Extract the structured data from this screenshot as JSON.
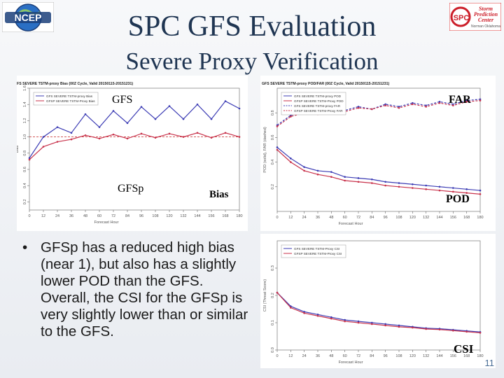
{
  "slide": {
    "title": "SPC GFS Evaluation",
    "subtitle": "Severe Proxy Verification",
    "bullet": "GFSp has a reduced high bias (near 1), but also has a slightly lower POD than the GFS.  Overall, the CSI for the GFSp is very slightly lower than or similar to the GFS.",
    "slide_number": "11"
  },
  "logos": {
    "ncep": {
      "text": "NCEP"
    },
    "spc": {
      "letters": "SPC",
      "lines": [
        "Storm",
        "Prediction",
        "Center"
      ],
      "subline": "Norman Oklahoma"
    }
  },
  "overlay_labels": {
    "gfs": "GFS",
    "gfsp": "GFSp",
    "bias": "Bias",
    "far": "FAR",
    "pod": "POD",
    "csi": "CSI"
  },
  "colors": {
    "gfs": "#3c3cb4",
    "gfsp": "#c8324b",
    "title": "#1f3552"
  },
  "chart_data": [
    {
      "type": "line",
      "title": "GFS SEVERE TSTM-proxy Bias (00Z Cycle, Valid 20150115-20151231)",
      "xlabel": "Forecast Hour",
      "ylabel": "Bias",
      "x": [
        0,
        12,
        24,
        36,
        48,
        60,
        72,
        84,
        96,
        108,
        120,
        132,
        144,
        156,
        168,
        180
      ],
      "xlim": [
        0,
        180
      ],
      "ylim": [
        0.1,
        1.6
      ],
      "yticks": [
        0.2,
        0.4,
        0.6,
        0.8,
        1.0,
        1.2,
        1.4,
        1.6
      ],
      "reference_line": 1.0,
      "legend": "top-left",
      "series": [
        {
          "name": "GFS SEVERE TSTM-proxy Bias",
          "color": "#3c3cb4",
          "values": [
            0.74,
            1.0,
            1.12,
            1.05,
            1.28,
            1.12,
            1.32,
            1.17,
            1.37,
            1.22,
            1.38,
            1.22,
            1.4,
            1.22,
            1.44,
            1.35
          ]
        },
        {
          "name": "GFSP SEVERE TSTM-Proxy Bias",
          "color": "#c8324b",
          "values": [
            0.72,
            0.88,
            0.94,
            0.97,
            1.02,
            0.98,
            1.03,
            0.98,
            1.04,
            0.99,
            1.04,
            1.0,
            1.05,
            0.99,
            1.05,
            1.0
          ]
        }
      ]
    },
    {
      "type": "line",
      "title": "GFS SEVERE TSTM-proxy POD/FAR (00Z Cycle, Valid 20150115-20151231)",
      "xlabel": "Forecast Hour",
      "ylabel": "POD (solid), FAR (dashed)",
      "x": [
        0,
        12,
        24,
        36,
        48,
        60,
        72,
        84,
        96,
        108,
        120,
        132,
        144,
        156,
        168,
        180
      ],
      "xlim": [
        0,
        180
      ],
      "ylim": [
        0.0,
        1.0
      ],
      "yticks": [
        0.2,
        0.4,
        0.6,
        0.8
      ],
      "legend": "top-left",
      "series": [
        {
          "name": "GFS SEVERE TSTM-proxy POD",
          "color": "#3c3cb4",
          "style": "solid",
          "values": [
            0.52,
            0.43,
            0.36,
            0.33,
            0.32,
            0.28,
            0.27,
            0.26,
            0.24,
            0.23,
            0.22,
            0.21,
            0.2,
            0.19,
            0.18,
            0.17
          ]
        },
        {
          "name": "GFSP SEVERE TSTM-Proxy POD",
          "color": "#c8324b",
          "style": "solid",
          "values": [
            0.5,
            0.4,
            0.33,
            0.3,
            0.28,
            0.25,
            0.24,
            0.23,
            0.21,
            0.2,
            0.19,
            0.18,
            0.17,
            0.16,
            0.15,
            0.14
          ]
        },
        {
          "name": "GFS SEVERE TSTM-proxy FAR",
          "color": "#3c3cb4",
          "style": "dashed",
          "values": [
            0.7,
            0.78,
            0.81,
            0.8,
            0.84,
            0.82,
            0.85,
            0.83,
            0.87,
            0.85,
            0.88,
            0.86,
            0.89,
            0.87,
            0.9,
            0.91
          ]
        },
        {
          "name": "GFSP SEVERE TSTM-Proxy FAR",
          "color": "#c8324b",
          "style": "dashed",
          "values": [
            0.69,
            0.77,
            0.8,
            0.79,
            0.83,
            0.81,
            0.84,
            0.83,
            0.86,
            0.84,
            0.87,
            0.85,
            0.88,
            0.86,
            0.89,
            0.9
          ]
        }
      ]
    },
    {
      "type": "line",
      "ylabel": "CSI (Threat Score)",
      "xlabel": "Forecast Hour",
      "x": [
        0,
        12,
        24,
        36,
        48,
        60,
        72,
        84,
        96,
        108,
        120,
        132,
        144,
        156,
        168,
        180
      ],
      "xlim": [
        0,
        180
      ],
      "ylim": [
        0.0,
        0.4
      ],
      "yticks": [
        0.0,
        0.1,
        0.2,
        0.3
      ],
      "legend": "top-left",
      "series": [
        {
          "name": "GFS SEVERE TSTM-Proxy CSI",
          "color": "#3c3cb4",
          "values": [
            0.21,
            0.16,
            0.14,
            0.13,
            0.12,
            0.11,
            0.105,
            0.1,
            0.095,
            0.09,
            0.085,
            0.08,
            0.078,
            0.074,
            0.07,
            0.066
          ]
        },
        {
          "name": "GFSP SEVERE TSTM-Proxy CSI",
          "color": "#c8324b",
          "values": [
            0.21,
            0.155,
            0.135,
            0.125,
            0.115,
            0.105,
            0.1,
            0.095,
            0.09,
            0.085,
            0.082,
            0.077,
            0.075,
            0.071,
            0.067,
            0.063
          ]
        }
      ]
    }
  ]
}
